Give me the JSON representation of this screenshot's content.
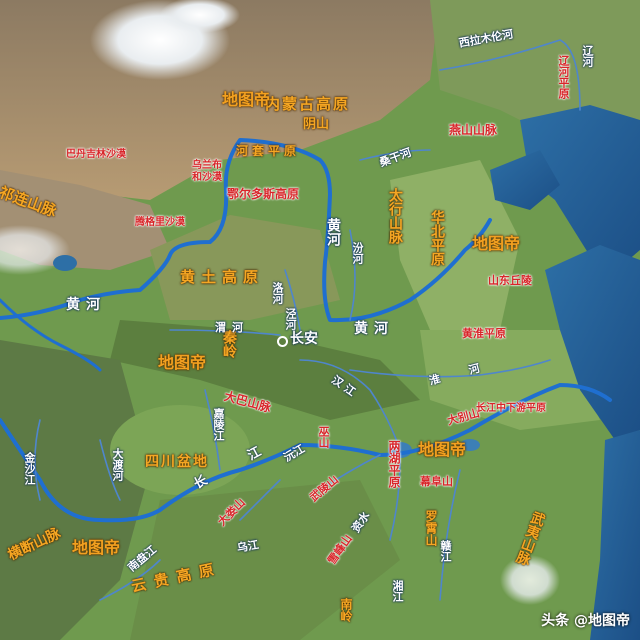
{
  "regions": {
    "yinshan": "阴山",
    "neimeng": "内蒙古高原",
    "hetao": "河套平原",
    "eerduosi": "鄂尔多斯高原",
    "huangtu": "黄土高原",
    "taihang": "太行山脉",
    "huabei": "华北平原",
    "yanshan": "燕山山脉",
    "liaohe_plain": "辽河平原",
    "shandong": "山东丘陵",
    "huanghuai": "黄淮平原",
    "qilian": "祁连山脉",
    "qinling": "秦岭",
    "daba": "大巴山脉",
    "sichuan": "四川盆地",
    "wushan": "巫山",
    "wuling": "武陵山",
    "xuefeng": "雪峰山",
    "dalou": "大娄山",
    "lianghu": "两湖平原",
    "mufu": "幕阜山",
    "luoxiao": "罗霄山",
    "wuyi": "武夷山脉",
    "dabie": "大别山",
    "changjiang_plain": "长江中下游平原",
    "hengduan": "横断山脉",
    "yungui": "云贵高原",
    "nanling": "南岭",
    "badain": "巴丹吉林沙漠",
    "tengger": "腾格里沙漠",
    "ulanbuh": "乌兰布和沙漠"
  },
  "rivers": {
    "huanghe_west": "黄河",
    "huanghe_north": "黄河",
    "huanghe_east": "黄河",
    "luohe": "洛河",
    "fenhe": "汾河",
    "jinghe": "泾河",
    "weihe": "渭河",
    "sanggan": "桑干河",
    "xilamulun": "西拉木伦河",
    "liaohe": "辽河",
    "hanjiang": "汉江",
    "huaihe": "淮河",
    "jialing": "嘉陵江",
    "jinsha": "金沙江",
    "dadu": "大渡河",
    "changjiang": "长江",
    "wujiang": "乌江",
    "yuanjiang": "沅江",
    "zishui": "资水",
    "xiangjiang": "湘江",
    "ganjiang": "赣江",
    "nanpanjiang": "南盘江"
  },
  "city": {
    "changan": "长安"
  },
  "watermarks": [
    "地图帝",
    "地图帝",
    "地图帝",
    "地图帝",
    "地图帝"
  ],
  "footer": "头条 @地图帝"
}
